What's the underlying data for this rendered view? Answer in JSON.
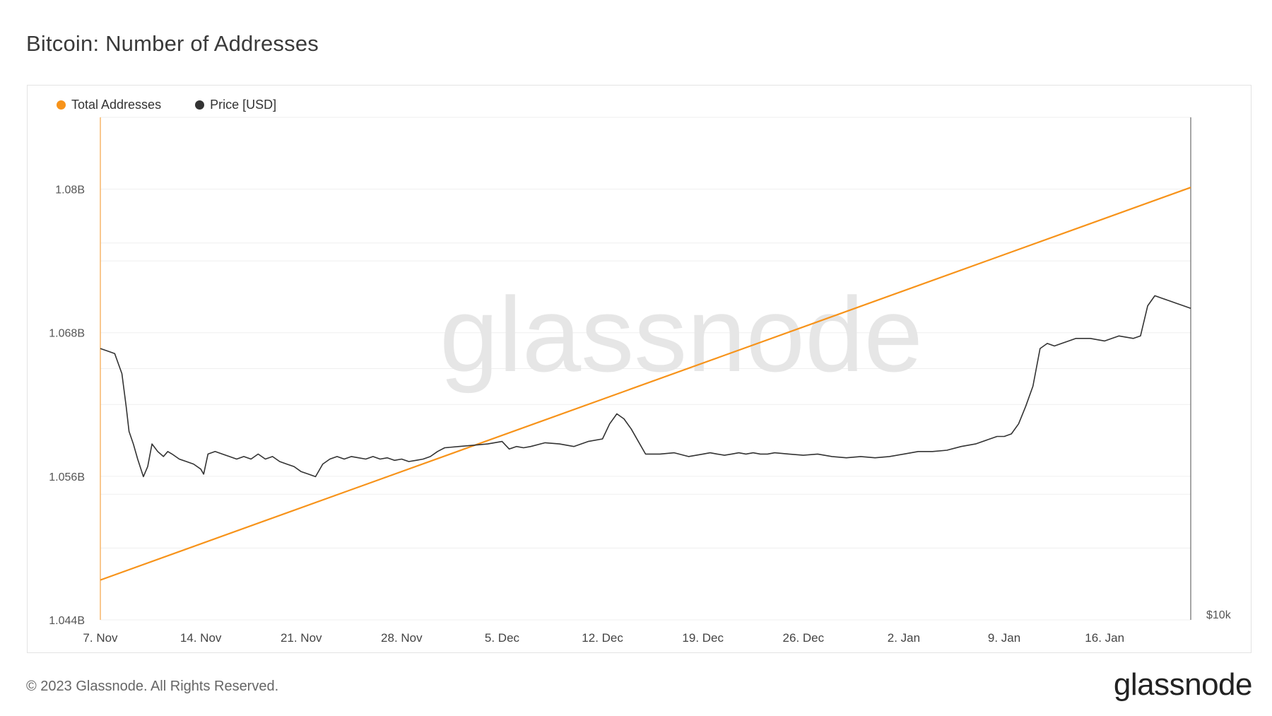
{
  "title": "Bitcoin: Number of Addresses",
  "footer": "© 2023 Glassnode. All Rights Reserved.",
  "logo": "glassnode",
  "watermark": "glassnode",
  "legend": [
    {
      "label": "Total Addresses",
      "color": "#f7931a"
    },
    {
      "label": "Price [USD]",
      "color": "#333333"
    }
  ],
  "chart_data": {
    "type": "line",
    "x_tick_labels": [
      "7. Nov",
      "14. Nov",
      "21. Nov",
      "28. Nov",
      "5. Dec",
      "12. Dec",
      "19. Dec",
      "26. Dec",
      "2. Jan",
      "9. Jan",
      "16. Jan"
    ],
    "y_left_tick_labels": [
      "1.044B",
      "1.056B",
      "1.068B",
      "1.08B"
    ],
    "y_right_tick_labels": [
      "$10k"
    ],
    "y_left_range": [
      1.044,
      1.086
    ],
    "y_right_range": [
      10000,
      30000
    ],
    "x_range_days": [
      0,
      76
    ],
    "grid": true,
    "legend_position": "top-left",
    "series": [
      {
        "name": "Total Addresses",
        "axis": "left",
        "color": "#f7931a",
        "x_days": [
          0,
          76
        ],
        "values": [
          1.04733,
          1.08014
        ]
      },
      {
        "name": "Price [USD]",
        "axis": "right",
        "color": "#333333",
        "x_days": [
          0,
          0.5,
          1,
          1.5,
          1.8,
          2.0,
          2.3,
          2.6,
          3.0,
          3.3,
          3.6,
          4.0,
          4.4,
          4.7,
          5.0,
          5.5,
          6.0,
          6.5,
          7.0,
          7.2,
          7.5,
          8.0,
          8.5,
          9.0,
          9.5,
          10.0,
          10.5,
          11.0,
          11.5,
          12.0,
          12.5,
          13.0,
          13.5,
          14.0,
          14.5,
          15.0,
          15.5,
          16.0,
          16.5,
          17.0,
          17.5,
          18.0,
          18.5,
          19.0,
          19.5,
          20.0,
          20.5,
          21.0,
          21.5,
          22.0,
          22.5,
          23.0,
          23.5,
          24.0,
          25.0,
          26.0,
          27.0,
          28.0,
          28.5,
          29.0,
          29.5,
          30.0,
          31.0,
          32.0,
          33.0,
          34.0,
          35.0,
          35.5,
          36.0,
          36.5,
          37.0,
          38.0,
          39.0,
          40.0,
          41.0,
          42.0,
          42.5,
          43.0,
          43.5,
          44.0,
          44.5,
          45.0,
          45.5,
          46.0,
          46.5,
          47.0,
          48.0,
          49.0,
          50.0,
          51.0,
          52.0,
          53.0,
          54.0,
          55.0,
          56.0,
          57.0,
          58.0,
          59.0,
          60.0,
          61.0,
          62.0,
          62.5,
          63.0,
          63.5,
          64.0,
          64.5,
          65.0,
          65.5,
          66.0,
          66.5,
          67.0,
          67.5,
          68.0,
          69.0,
          70.0,
          71.0,
          72.0,
          72.5,
          73.0,
          73.5,
          74.0,
          74.5,
          75.0,
          75.5,
          76.0
        ],
        "values": [
          20800,
          20700,
          20600,
          19800,
          18500,
          17500,
          17000,
          16400,
          15700,
          16100,
          17000,
          16700,
          16500,
          16700,
          16600,
          16400,
          16300,
          16200,
          16000,
          15800,
          16600,
          16700,
          16600,
          16500,
          16400,
          16500,
          16400,
          16600,
          16400,
          16500,
          16300,
          16200,
          16100,
          15900,
          15800,
          15700,
          16200,
          16400,
          16500,
          16400,
          16500,
          16450,
          16400,
          16500,
          16400,
          16450,
          16350,
          16400,
          16300,
          16350,
          16400,
          16500,
          16700,
          16850,
          16900,
          16950,
          17000,
          17100,
          16800,
          16900,
          16850,
          16900,
          17050,
          17000,
          16900,
          17100,
          17200,
          17800,
          18200,
          18000,
          17600,
          16600,
          16600,
          16650,
          16500,
          16600,
          16650,
          16600,
          16550,
          16600,
          16650,
          16600,
          16650,
          16600,
          16600,
          16650,
          16600,
          16550,
          16600,
          16500,
          16450,
          16500,
          16450,
          16500,
          16600,
          16700,
          16700,
          16750,
          16900,
          17000,
          17200,
          17300,
          17300,
          17400,
          17800,
          18500,
          19300,
          20800,
          21000,
          20900,
          21000,
          21100,
          21200,
          21200,
          21100,
          21300,
          21200,
          21300,
          22500,
          22900,
          22800,
          22700,
          22600,
          22500,
          22400
        ]
      }
    ]
  }
}
